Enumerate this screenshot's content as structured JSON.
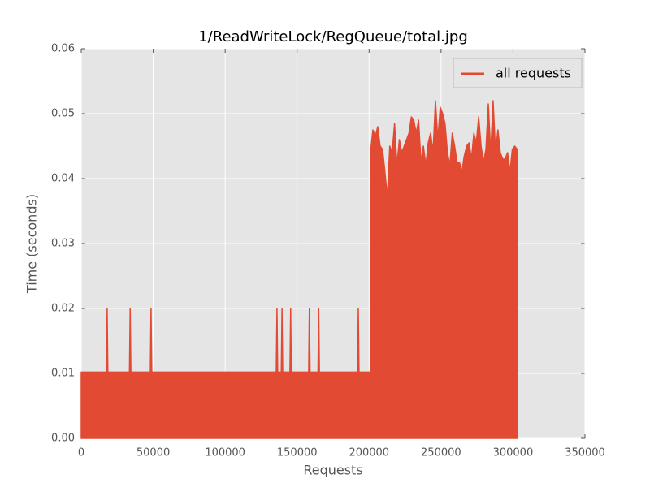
{
  "chart_data": {
    "type": "area",
    "title": "1/ReadWriteLock/RegQueue/total.jpg",
    "x_label": "Requests",
    "y_label": "Time (seconds)",
    "xlim": [
      0,
      350000
    ],
    "xticks": [
      0,
      50000,
      100000,
      150000,
      200000,
      250000,
      300000,
      350000
    ],
    "ylim": [
      0,
      0.06
    ],
    "yticks": [
      {
        "value": 0,
        "label": "0.00"
      },
      0.01,
      0.02,
      0.03,
      0.04,
      0.05,
      0.06
    ],
    "grid": true,
    "legend": "upper right",
    "series": [
      {
        "name": "all requests",
        "color": "#E24A33",
        "x": [
          0,
          17500,
          18000,
          18500,
          33500,
          34000,
          34500,
          48000,
          48500,
          49000,
          135500,
          136000,
          136500,
          139000,
          139500,
          140000,
          145000,
          145500,
          146000,
          158000,
          158500,
          159000,
          164500,
          165000,
          165500,
          192000,
          192500,
          193000,
          200900,
          201000,
          202670,
          204340,
          206010,
          207680,
          209350,
          211020,
          212690,
          214360,
          216030,
          217700,
          219370,
          221040,
          222710,
          224380,
          226050,
          227720,
          229390,
          231060,
          232730,
          234400,
          236070,
          237740,
          239410,
          241080,
          242750,
          244420,
          246090,
          247760,
          249430,
          251100,
          252770,
          254440,
          256110,
          257780,
          259450,
          261120,
          262790,
          264460,
          266130,
          267800,
          269470,
          271140,
          272810,
          274480,
          276150,
          277820,
          279490,
          281160,
          282830,
          284500,
          286170,
          287840,
          289510,
          291180,
          292850,
          294520,
          296190,
          297860,
          299530,
          301200,
          302870,
          303000
        ],
        "values": [
          0.0102,
          0.0102,
          0.02,
          0.0102,
          0.0102,
          0.02,
          0.0102,
          0.0102,
          0.02,
          0.0102,
          0.0102,
          0.02,
          0.0102,
          0.0102,
          0.02,
          0.0102,
          0.0102,
          0.02,
          0.0102,
          0.0102,
          0.02,
          0.0102,
          0.0102,
          0.02,
          0.0102,
          0.0102,
          0.02,
          0.0102,
          0.0102,
          0.044,
          0.0475,
          0.0465,
          0.048,
          0.045,
          0.0445,
          0.041,
          0.037,
          0.045,
          0.044,
          0.0485,
          0.042,
          0.046,
          0.044,
          0.045,
          0.046,
          0.047,
          0.0495,
          0.049,
          0.047,
          0.049,
          0.0425,
          0.045,
          0.042,
          0.0455,
          0.047,
          0.044,
          0.052,
          0.046,
          0.051,
          0.05,
          0.0485,
          0.044,
          0.042,
          0.047,
          0.045,
          0.0425,
          0.0425,
          0.041,
          0.0435,
          0.045,
          0.0455,
          0.043,
          0.047,
          0.0455,
          0.0495,
          0.045,
          0.0425,
          0.0445,
          0.0515,
          0.044,
          0.052,
          0.044,
          0.0475,
          0.044,
          0.043,
          0.043,
          0.044,
          0.041,
          0.0445,
          0.045,
          0.0445,
          0
        ]
      }
    ]
  }
}
